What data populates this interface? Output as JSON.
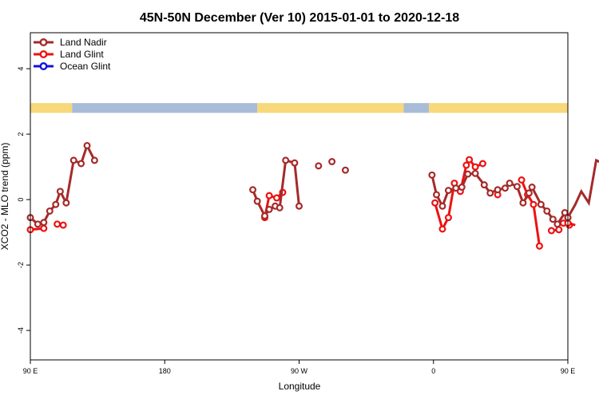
{
  "chart_data": {
    "type": "line",
    "title": "45N-50N December (Ver 10)   2015-01-01 to 2020-12-18",
    "xlabel": "Longitude",
    "ylabel": "XCO2 - MLO trend (ppm)",
    "xlim": [
      90,
      450
    ],
    "ylim": [
      -4.9,
      5.1
    ],
    "x_ticks": [
      {
        "value": 90,
        "label": "90 E"
      },
      {
        "value": 180,
        "label": "180"
      },
      {
        "value": 270,
        "label": "90 W"
      },
      {
        "value": 360,
        "label": "0"
      },
      {
        "value": 450,
        "label": "90 E"
      },
      {
        "value": 540,
        "label": "180"
      }
    ],
    "y_ticks": [
      {
        "value": -4,
        "label": "-4"
      },
      {
        "value": -2,
        "label": "-2"
      },
      {
        "value": 0,
        "label": "0"
      },
      {
        "value": 2,
        "label": "2"
      },
      {
        "value": 4,
        "label": "4"
      }
    ],
    "legend_position": "top-left",
    "land_strip": {
      "y_range": [
        2.65,
        2.95
      ],
      "land_color": "#f7d87a",
      "ocean_color": "#a8bcd8"
    },
    "series": [
      {
        "name": "Land Nadir",
        "color": "#a52a2a",
        "segments": [
          [
            [
              90,
              -0.55
            ],
            [
              95,
              -0.75
            ],
            [
              99,
              -0.7
            ],
            [
              103,
              -0.35
            ],
            [
              107,
              -0.15
            ],
            [
              110,
              0.25
            ],
            [
              114,
              -0.1
            ],
            [
              119,
              1.2
            ],
            [
              124,
              1.1
            ],
            [
              128,
              1.65
            ],
            [
              133,
              1.2
            ]
          ],
          [
            [
              239,
              0.3
            ],
            [
              242,
              -0.05
            ],
            [
              247,
              -0.5
            ],
            [
              250,
              -0.3
            ],
            [
              254,
              -0.2
            ],
            [
              257,
              -0.25
            ],
            [
              261,
              1.2
            ],
            [
              267,
              1.12
            ],
            [
              270,
              -0.2
            ]
          ],
          [
            [
              283,
              1.03
            ]
          ],
          [
            [
              292,
              1.16
            ]
          ],
          [
            [
              301,
              0.9
            ]
          ],
          [
            [
              359,
              0.75
            ],
            [
              362,
              0.15
            ],
            [
              366,
              -0.2
            ],
            [
              370,
              0.28
            ],
            [
              375,
              0.35
            ],
            [
              379,
              0.38
            ],
            [
              383,
              0.78
            ],
            [
              388,
              0.8
            ],
            [
              394,
              0.45
            ],
            [
              398,
              0.2
            ],
            [
              403,
              0.3
            ],
            [
              408,
              0.35
            ],
            [
              411,
              0.5
            ],
            [
              416,
              0.4
            ],
            [
              420,
              -0.1
            ],
            [
              424,
              0.2
            ],
            [
              426,
              0.38
            ],
            [
              432,
              -0.15
            ],
            [
              436,
              -0.35
            ],
            [
              440,
              -0.6
            ],
            [
              443,
              -0.75
            ],
            [
              448,
              -0.4
            ],
            [
              450,
              -0.55
            ]
          ],
          [
            [
              450,
              -0.55
            ],
            [
              455,
              -0.15
            ],
            [
              459,
              0.25
            ],
            [
              464,
              -0.1
            ],
            [
              469,
              1.2
            ],
            [
              474,
              1.1
            ],
            [
              478,
              1.65
            ],
            [
              483,
              1.2
            ]
          ]
        ]
      },
      {
        "name": "Land Glint",
        "color": "#ee1111",
        "segments": [
          [
            [
              90,
              -0.92
            ],
            [
              99,
              -0.88
            ]
          ],
          [
            [
              108,
              -0.75
            ],
            [
              112,
              -0.78
            ]
          ],
          [
            [
              247,
              -0.55
            ],
            [
              250,
              0.12
            ],
            [
              255,
              0.05
            ],
            [
              259,
              0.22
            ]
          ],
          [
            [
              361,
              -0.1
            ],
            [
              366,
              -0.9
            ],
            [
              370,
              -0.55
            ],
            [
              374,
              0.5
            ],
            [
              378,
              0.25
            ],
            [
              382,
              1.05
            ],
            [
              384,
              1.22
            ],
            [
              388,
              1.0
            ],
            [
              393,
              1.1
            ]
          ],
          [
            [
              403,
              0.15
            ]
          ],
          [
            [
              419,
              0.6
            ],
            [
              423,
              0.15
            ],
            [
              427,
              -0.15
            ],
            [
              431,
              -1.42
            ]
          ],
          [
            [
              439,
              -0.95
            ],
            [
              444,
              -0.92
            ]
          ],
          [
            [
              447,
              -0.72
            ],
            [
              451,
              -0.78
            ]
          ],
          [
            [
              450,
              -0.72
            ],
            [
              455,
              -0.78
            ]
          ]
        ]
      },
      {
        "name": "Ocean Glint",
        "color": "#1111dd",
        "segments": []
      }
    ]
  }
}
